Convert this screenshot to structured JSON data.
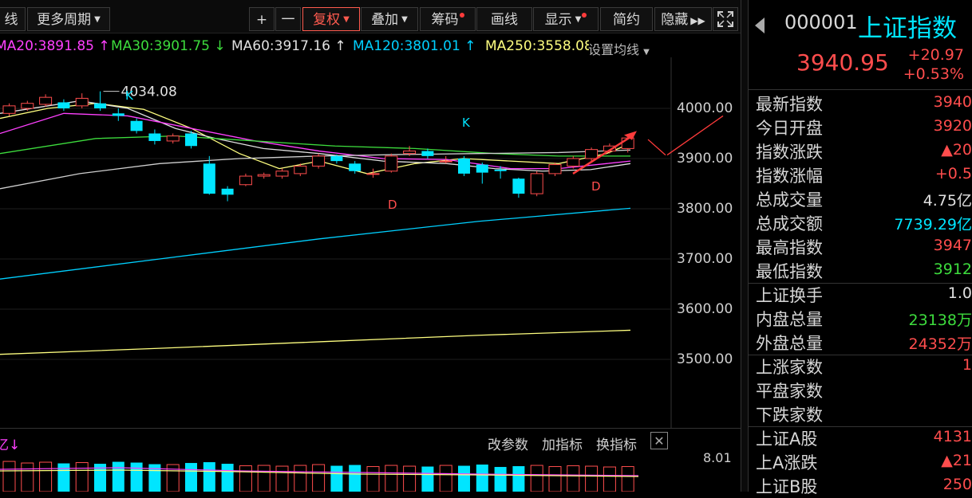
{
  "toolbar": {
    "left_label": "线",
    "period": "更多周期",
    "plus": "+",
    "minus": "一",
    "fuquan": "复权",
    "diejia": "叠加",
    "chouma": "筹码",
    "huaxian": "画线",
    "xianshi": "显示",
    "jianyue": "简约",
    "yincang": "隐藏"
  },
  "ma": {
    "ma20": "MA20:3891.85",
    "ma30": "MA30:3901.75",
    "ma60": "MA60:3917.16",
    "ma120": "MA120:3801.01",
    "ma250": "MA250:3558.08",
    "settings": "设置均线",
    "colors": {
      "ma20": "#ff40ff",
      "ma30": "#3ddc3d",
      "ma60": "#e0e0e0",
      "ma120": "#00d0ff",
      "ma250": "#ffff80"
    }
  },
  "chart": {
    "y_ticks": [
      "4000.00",
      "3900.00",
      "3800.00",
      "3700.00",
      "3600.00",
      "3500.00"
    ],
    "high_label": "4034.08",
    "markers": {
      "k1": "K",
      "k2": "K",
      "d1": "D",
      "d2": "D"
    },
    "candles": [
      {
        "o": 3990,
        "c": 4005,
        "h": 4010,
        "l": 3985
      },
      {
        "o": 4000,
        "c": 4010,
        "h": 4015,
        "l": 3995
      },
      {
        "o": 4008,
        "c": 4022,
        "h": 4028,
        "l": 4003
      },
      {
        "o": 4012,
        "c": 4000,
        "h": 4018,
        "l": 3995
      },
      {
        "o": 4005,
        "c": 4020,
        "h": 4030,
        "l": 4000
      },
      {
        "o": 4010,
        "c": 4000,
        "h": 4034,
        "l": 3995
      },
      {
        "o": 3990,
        "c": 3985,
        "h": 4000,
        "l": 3975
      },
      {
        "o": 3975,
        "c": 3955,
        "h": 3980,
        "l": 3950
      },
      {
        "o": 3950,
        "c": 3935,
        "h": 3958,
        "l": 3928
      },
      {
        "o": 3935,
        "c": 3945,
        "h": 3950,
        "l": 3930
      },
      {
        "o": 3950,
        "c": 3925,
        "h": 3955,
        "l": 3920
      },
      {
        "o": 3890,
        "c": 3830,
        "h": 3905,
        "l": 3828
      },
      {
        "o": 3840,
        "c": 3828,
        "h": 3845,
        "l": 3815
      },
      {
        "o": 3848,
        "c": 3865,
        "h": 3870,
        "l": 3845
      },
      {
        "o": 3865,
        "c": 3868,
        "h": 3872,
        "l": 3860
      },
      {
        "o": 3865,
        "c": 3875,
        "h": 3880,
        "l": 3860
      },
      {
        "o": 3870,
        "c": 3885,
        "h": 3890,
        "l": 3865
      },
      {
        "o": 3885,
        "c": 3905,
        "h": 3910,
        "l": 3880
      },
      {
        "o": 3905,
        "c": 3895,
        "h": 3908,
        "l": 3890
      },
      {
        "o": 3890,
        "c": 3875,
        "h": 3895,
        "l": 3870
      },
      {
        "o": 3870,
        "c": 3870,
        "h": 3880,
        "l": 3862
      },
      {
        "o": 3875,
        "c": 3905,
        "h": 3910,
        "l": 3872
      },
      {
        "o": 3910,
        "c": 3915,
        "h": 3925,
        "l": 3905
      },
      {
        "o": 3915,
        "c": 3905,
        "h": 3920,
        "l": 3900
      },
      {
        "o": 3895,
        "c": 3895,
        "h": 3905,
        "l": 3890
      },
      {
        "o": 3900,
        "c": 3870,
        "h": 3905,
        "l": 3865
      },
      {
        "o": 3888,
        "c": 3872,
        "h": 3892,
        "l": 3850
      },
      {
        "o": 3878,
        "c": 3875,
        "h": 3885,
        "l": 3860
      },
      {
        "o": 3860,
        "c": 3830,
        "h": 3862,
        "l": 3822
      },
      {
        "o": 3830,
        "c": 3870,
        "h": 3875,
        "l": 3825
      },
      {
        "o": 3870,
        "c": 3888,
        "h": 3892,
        "l": 3865
      },
      {
        "o": 3885,
        "c": 3900,
        "h": 3905,
        "l": 3880
      },
      {
        "o": 3900,
        "c": 3918,
        "h": 3922,
        "l": 3895
      },
      {
        "o": 3915,
        "c": 3925,
        "h": 3930,
        "l": 3910
      },
      {
        "o": 3920,
        "c": 3941,
        "h": 3947,
        "l": 3912
      }
    ]
  },
  "subchart": {
    "left_label": "亿↓",
    "gaicanshu": "改参数",
    "jiazhibiao": "加指标",
    "huanzhibiao": "换指标",
    "close": "✕",
    "max_label": "8.01",
    "volumes": [
      7.6,
      7.2,
      7.4,
      7.1,
      7.3,
      7.0,
      7.5,
      7.3,
      6.9,
      6.8,
      7.2,
      7.4,
      7.0,
      6.5,
      6.6,
      6.4,
      6.6,
      6.8,
      6.5,
      6.7,
      6.3,
      6.6,
      6.4,
      6.3,
      6.6,
      6.5,
      6.8,
      6.2,
      6.4,
      6.6,
      6.3,
      6.5,
      6.4,
      6.2,
      6.3
    ]
  },
  "quote": {
    "code": "000001",
    "name": "上证指数",
    "price": "3940.95",
    "change": "+20.97",
    "change_pct": "+0.53%",
    "rows": [
      {
        "label": "最新指数",
        "value": "3940",
        "color": "red"
      },
      {
        "label": "今日开盘",
        "value": "3920",
        "color": "red"
      },
      {
        "label": "指数涨跌",
        "value": "▲20",
        "color": "red"
      },
      {
        "label": "指数涨幅",
        "value": "+0.5",
        "color": "red"
      },
      {
        "label": "总成交量",
        "value": "4.75亿",
        "color": "white"
      },
      {
        "label": "总成交额",
        "value": "7739.29亿",
        "color": "cyan"
      },
      {
        "label": "最高指数",
        "value": "3947",
        "color": "red"
      },
      {
        "label": "最低指数",
        "value": "3912",
        "color": "green"
      },
      {
        "label": "上证换手",
        "value": "1.0",
        "color": "white"
      },
      {
        "label": "内盘总量",
        "value": "23138万",
        "color": "green"
      },
      {
        "label": "外盘总量",
        "value": "24352万",
        "color": "red"
      },
      {
        "label": "上涨家数",
        "value": "1",
        "color": "red"
      },
      {
        "label": "平盘家数",
        "value": "",
        "color": "white"
      },
      {
        "label": "下跌家数",
        "value": "",
        "color": "green"
      },
      {
        "label": "上证A股",
        "value": "4131",
        "color": "red"
      },
      {
        "label": "上A涨跌",
        "value": "▲21",
        "color": "red"
      },
      {
        "label": "上证B股",
        "value": "250",
        "color": "red"
      }
    ]
  }
}
